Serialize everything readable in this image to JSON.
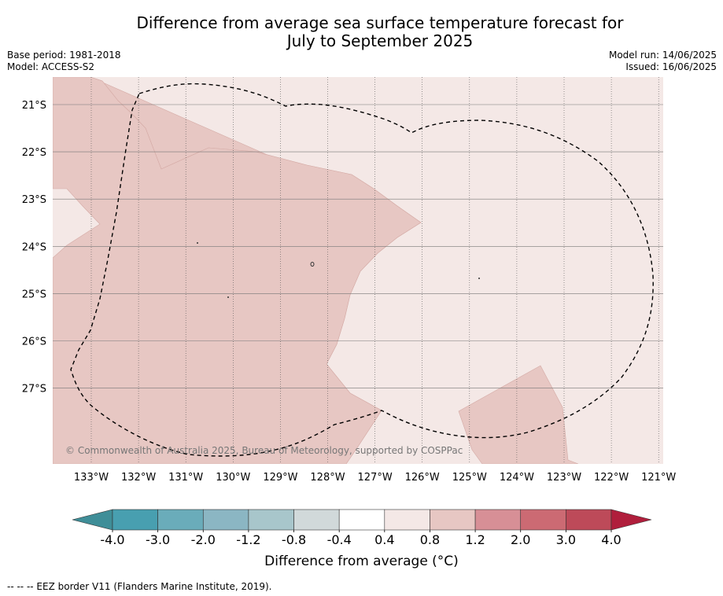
{
  "title_line1": "Difference from average sea surface temperature forecast for",
  "title_line2": "July to September 2025",
  "base_period": "Base period: 1981-2018",
  "model": "Model: ACCESS-S2",
  "model_run": "Model run: 14/06/2025",
  "issued": "Issued: 16/06/2025",
  "copyright": "© Commonwealth of Australia 2025, Bureau of Meteorology, supported by COSPPac",
  "lat_labels": [
    "21°S",
    "22°S",
    "23°S",
    "24°S",
    "25°S",
    "26°S",
    "27°S"
  ],
  "lon_labels": [
    "133°W",
    "132°W",
    "131°W",
    "130°W",
    "129°W",
    "128°W",
    "127°W",
    "126°W",
    "125°W",
    "124°W",
    "123°W",
    "122°W",
    "121°W"
  ],
  "colorbar": {
    "ticks": [
      "-4.0",
      "-3.0",
      "-2.0",
      "-1.2",
      "-0.8",
      "-0.4",
      "0.4",
      "0.8",
      "1.2",
      "2.0",
      "3.0",
      "4.0"
    ],
    "colors": [
      "#3f8e98",
      "#489fb0",
      "#6aacba",
      "#8bb6c3",
      "#a8c6cb",
      "#d1d9da",
      "#ffffff",
      "#f4e8e6",
      "#e7c7c3",
      "#d78f96",
      "#cc6a73",
      "#bd4a59",
      "#b01e3c"
    ],
    "label": "Difference from average (°C)"
  },
  "map_colors": {
    "warm_light": "#f4e8e6",
    "warm_medium": "#e7c7c3"
  },
  "footnote": "--  --  -- EEZ border V11 (Flanders Marine Institute, 2019)."
}
